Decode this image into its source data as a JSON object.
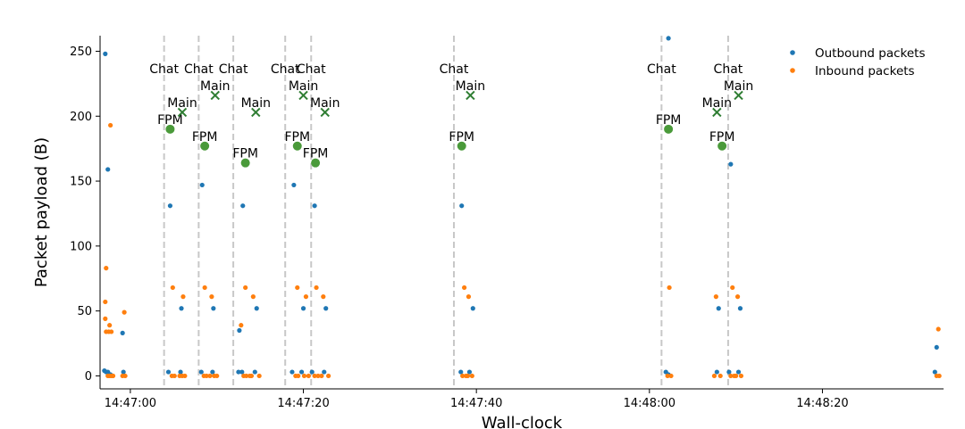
{
  "chart_data": {
    "type": "scatter",
    "xlabel": "Wall-clock",
    "ylabel": "Packet payload (B)",
    "xlim": [
      -3.5,
      94
    ],
    "ylim": [
      -10,
      262
    ],
    "x_ticks": [
      {
        "value": 0,
        "label": "14:47:00"
      },
      {
        "value": 20,
        "label": "14:47:20"
      },
      {
        "value": 40,
        "label": "14:47:40"
      },
      {
        "value": 60,
        "label": "14:48:00"
      },
      {
        "value": 80,
        "label": "14:48:20"
      }
    ],
    "y_ticks": [
      0,
      50,
      100,
      150,
      200,
      250
    ],
    "legend_position": "top-right",
    "colors": {
      "outbound": "#1f77b4",
      "inbound": "#ff7f0e",
      "marker": "#4a9a3a",
      "cross": "#2e7d32",
      "vline": "#c8c8c8"
    },
    "series": [
      {
        "name": "Outbound packets",
        "points": [
          [
            -2.9,
            248
          ],
          [
            -2.6,
            159
          ],
          [
            -3.0,
            4
          ],
          [
            -2.8,
            3
          ],
          [
            -2.6,
            3
          ],
          [
            -2.3,
            1
          ],
          [
            -0.9,
            33
          ],
          [
            -0.8,
            3
          ],
          [
            4.6,
            131
          ],
          [
            4.4,
            3
          ],
          [
            5.9,
            52
          ],
          [
            5.8,
            3
          ],
          [
            8.3,
            147
          ],
          [
            8.2,
            3
          ],
          [
            9.6,
            52
          ],
          [
            9.5,
            3
          ],
          [
            12.6,
            35
          ],
          [
            13.0,
            131
          ],
          [
            12.9,
            3
          ],
          [
            12.5,
            3
          ],
          [
            14.6,
            52
          ],
          [
            14.4,
            3
          ],
          [
            18.9,
            147
          ],
          [
            18.7,
            3
          ],
          [
            20.0,
            52
          ],
          [
            19.8,
            3
          ],
          [
            21.3,
            131
          ],
          [
            21.0,
            3
          ],
          [
            22.6,
            52
          ],
          [
            22.4,
            3
          ],
          [
            38.3,
            131
          ],
          [
            38.2,
            3
          ],
          [
            39.6,
            52
          ],
          [
            39.2,
            3
          ],
          [
            62.2,
            260
          ],
          [
            61.9,
            3
          ],
          [
            62.2,
            1
          ],
          [
            68.0,
            52
          ],
          [
            67.8,
            3
          ],
          [
            69.4,
            163
          ],
          [
            69.2,
            3
          ],
          [
            70.5,
            52
          ],
          [
            70.3,
            3
          ],
          [
            93.2,
            22
          ],
          [
            93.0,
            3
          ]
        ]
      },
      {
        "name": "Inbound packets",
        "points": [
          [
            -2.8,
            83
          ],
          [
            -2.9,
            57
          ],
          [
            -2.9,
            44
          ],
          [
            -2.4,
            39
          ],
          [
            -2.2,
            34
          ],
          [
            -2.5,
            34
          ],
          [
            -2.8,
            34
          ],
          [
            -2.3,
            193
          ],
          [
            -2.6,
            0
          ],
          [
            -2.4,
            0
          ],
          [
            -2.2,
            0
          ],
          [
            -2.0,
            0
          ],
          [
            -0.7,
            49
          ],
          [
            -0.6,
            0
          ],
          [
            -0.9,
            0
          ],
          [
            4.9,
            68
          ],
          [
            4.8,
            0
          ],
          [
            5.1,
            0
          ],
          [
            6.1,
            61
          ],
          [
            6.0,
            0
          ],
          [
            6.3,
            0
          ],
          [
            5.7,
            0
          ],
          [
            8.6,
            68
          ],
          [
            8.5,
            0
          ],
          [
            8.8,
            0
          ],
          [
            9.4,
            61
          ],
          [
            9.2,
            0
          ],
          [
            9.7,
            0
          ],
          [
            10.0,
            0
          ],
          [
            12.8,
            39
          ],
          [
            13.3,
            68
          ],
          [
            13.1,
            0
          ],
          [
            13.4,
            0
          ],
          [
            14.2,
            61
          ],
          [
            14.0,
            0
          ],
          [
            14.9,
            0
          ],
          [
            13.8,
            0
          ],
          [
            19.3,
            68
          ],
          [
            19.1,
            0
          ],
          [
            19.4,
            0
          ],
          [
            20.3,
            61
          ],
          [
            20.1,
            0
          ],
          [
            20.6,
            0
          ],
          [
            21.5,
            68
          ],
          [
            21.3,
            0
          ],
          [
            21.7,
            0
          ],
          [
            22.3,
            61
          ],
          [
            22.1,
            0
          ],
          [
            22.9,
            0
          ],
          [
            38.6,
            68
          ],
          [
            38.4,
            0
          ],
          [
            38.8,
            0
          ],
          [
            39.1,
            61
          ],
          [
            39.0,
            0
          ],
          [
            39.5,
            0
          ],
          [
            62.3,
            68
          ],
          [
            62.1,
            0
          ],
          [
            62.5,
            0
          ],
          [
            67.7,
            61
          ],
          [
            67.5,
            0
          ],
          [
            68.2,
            0
          ],
          [
            69.6,
            68
          ],
          [
            69.4,
            0
          ],
          [
            69.8,
            0
          ],
          [
            70.2,
            61
          ],
          [
            70.0,
            0
          ],
          [
            70.6,
            0
          ],
          [
            93.4,
            36
          ],
          [
            93.2,
            0
          ],
          [
            93.5,
            0
          ]
        ]
      }
    ],
    "vlines": [
      3.9,
      7.9,
      11.9,
      17.9,
      20.9,
      37.4,
      61.4,
      69.1
    ],
    "events": [
      {
        "x": 4.6,
        "y": 190,
        "label": "FPM",
        "kind": "dot"
      },
      {
        "x": 8.6,
        "y": 177,
        "label": "FPM",
        "kind": "dot"
      },
      {
        "x": 13.3,
        "y": 164,
        "label": "FPM",
        "kind": "dot"
      },
      {
        "x": 19.3,
        "y": 177,
        "label": "FPM",
        "kind": "dot"
      },
      {
        "x": 21.4,
        "y": 164,
        "label": "FPM",
        "kind": "dot"
      },
      {
        "x": 38.3,
        "y": 177,
        "label": "FPM",
        "kind": "dot"
      },
      {
        "x": 62.2,
        "y": 190,
        "label": "FPM",
        "kind": "dot"
      },
      {
        "x": 68.4,
        "y": 177,
        "label": "FPM",
        "kind": "dot"
      },
      {
        "x": 6.0,
        "y": 203,
        "label": "Main",
        "kind": "cross"
      },
      {
        "x": 9.8,
        "y": 216,
        "label": "Main",
        "kind": "cross"
      },
      {
        "x": 14.5,
        "y": 203,
        "label": "Main",
        "kind": "cross"
      },
      {
        "x": 20.0,
        "y": 216,
        "label": "Main",
        "kind": "cross"
      },
      {
        "x": 22.5,
        "y": 203,
        "label": "Main",
        "kind": "cross"
      },
      {
        "x": 39.3,
        "y": 216,
        "label": "Main",
        "kind": "cross"
      },
      {
        "x": 67.8,
        "y": 203,
        "label": "Main",
        "kind": "cross"
      },
      {
        "x": 70.3,
        "y": 216,
        "label": "Main",
        "kind": "cross"
      },
      {
        "x": 3.9,
        "y": 233,
        "label": "Chat",
        "kind": "text"
      },
      {
        "x": 7.9,
        "y": 233,
        "label": "Chat",
        "kind": "text"
      },
      {
        "x": 11.9,
        "y": 233,
        "label": "Chat",
        "kind": "text"
      },
      {
        "x": 17.9,
        "y": 233,
        "label": "Chat",
        "kind": "text"
      },
      {
        "x": 20.9,
        "y": 233,
        "label": "Chat",
        "kind": "text"
      },
      {
        "x": 37.4,
        "y": 233,
        "label": "Chat",
        "kind": "text"
      },
      {
        "x": 61.4,
        "y": 233,
        "label": "Chat",
        "kind": "text"
      },
      {
        "x": 69.1,
        "y": 233,
        "label": "Chat",
        "kind": "text"
      }
    ]
  }
}
